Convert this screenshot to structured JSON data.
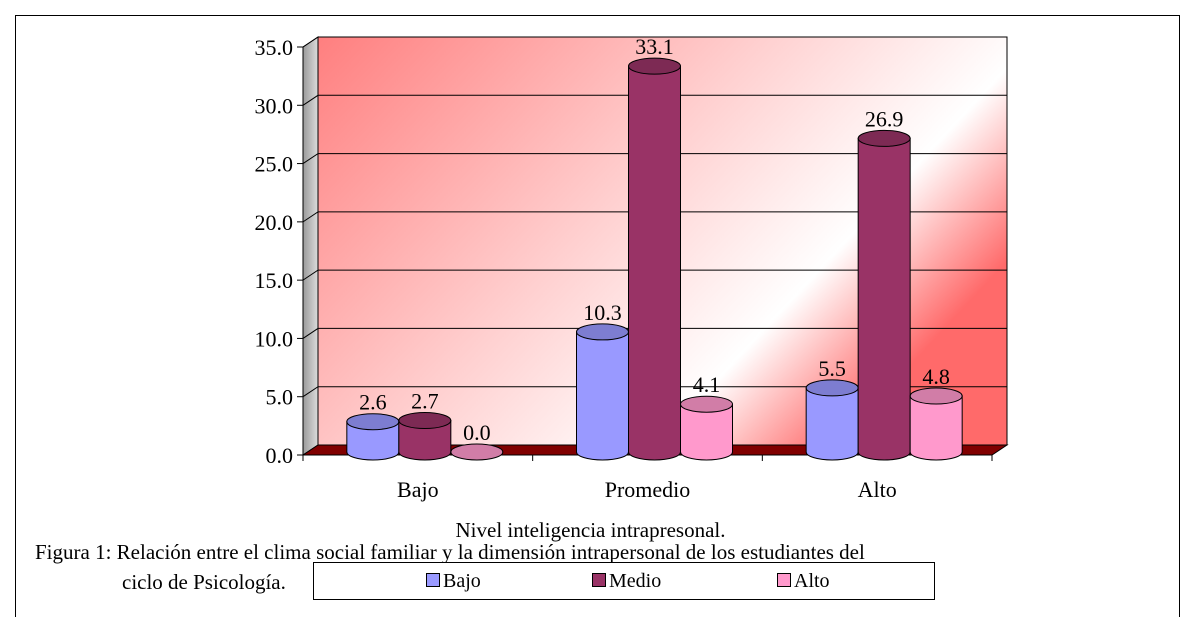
{
  "chart_data": {
    "type": "bar",
    "style": "3d-cylinder",
    "categories": [
      "Bajo",
      "Promedio",
      "Alto"
    ],
    "series": [
      {
        "name": "Bajo",
        "values": [
          2.6,
          10.3,
          5.5
        ],
        "color": "#9999ff"
      },
      {
        "name": "Medio",
        "values": [
          2.7,
          33.1,
          26.9
        ],
        "color": "#993366"
      },
      {
        "name": "Alto",
        "values": [
          0.0,
          4.1,
          4.8
        ],
        "color": "#ff99cc"
      }
    ],
    "value_labels": [
      [
        "2.6",
        "10.3",
        "5.5"
      ],
      [
        "2.7",
        "33.1",
        "26.9"
      ],
      [
        "0.0",
        "4.1",
        "4.8"
      ]
    ],
    "y_ticks": [
      "0.0",
      "5.0",
      "10.0",
      "15.0",
      "20.0",
      "25.0",
      "30.0",
      "35.0"
    ],
    "ylim": [
      0,
      35
    ],
    "xlabel": "Nivel inteligencia intrapresonal.",
    "ylabel": "",
    "grid": true,
    "legend_position": "bottom",
    "background_colors": {
      "wall": "#ff8080",
      "floor": "#800000"
    }
  },
  "caption": {
    "line1": "Figura 1: Relación entre el clima social familiar y la dimensión intrapersonal de los estudiantes del",
    "line2": "ciclo de  Psicología."
  }
}
